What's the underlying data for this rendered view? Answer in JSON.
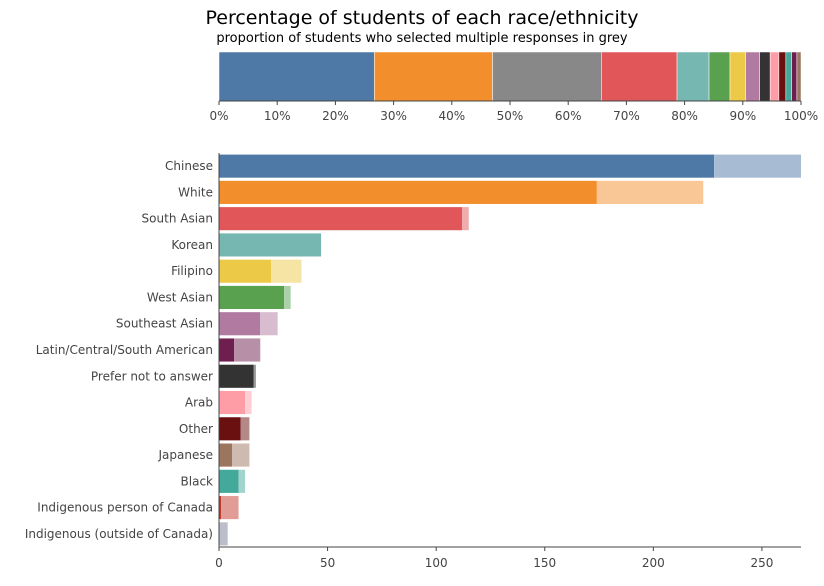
{
  "chart_data": [
    {
      "type": "bar",
      "orientation": "horizontal-stacked-100",
      "title": "Percentage of students of each race/ethnicity",
      "subtitle": "proportion of students who selected multiple responses in grey",
      "x_ticks": [
        "0%",
        "10%",
        "20%",
        "30%",
        "40%",
        "50%",
        "60%",
        "70%",
        "80%",
        "90%",
        "100%"
      ],
      "xlim": [
        0,
        100
      ],
      "segments": [
        {
          "category": "Chinese",
          "percent": 26.7,
          "color": "#4e79a7"
        },
        {
          "category": "White",
          "percent": 20.3,
          "color": "#f28e2b"
        },
        {
          "category": "Multiple responses",
          "percent": 18.7,
          "color": "#888888"
        },
        {
          "category": "South Asian",
          "percent": 13.0,
          "color": "#e15759"
        },
        {
          "category": "Korean",
          "percent": 5.5,
          "color": "#76b7b2"
        },
        {
          "category": "West Asian",
          "percent": 3.6,
          "color": "#59a14f"
        },
        {
          "category": "Filipino",
          "percent": 2.7,
          "color": "#edc948"
        },
        {
          "category": "Southeast Asian",
          "percent": 2.4,
          "color": "#b07aa1"
        },
        {
          "category": "Prefer not to answer",
          "percent": 1.8,
          "color": "#333333"
        },
        {
          "category": "Arab",
          "percent": 1.5,
          "color": "#ff9da7"
        },
        {
          "category": "Other",
          "percent": 1.2,
          "color": "#6b1010"
        },
        {
          "category": "Black",
          "percent": 1.0,
          "color": "#43a99a"
        },
        {
          "category": "Latin/Central/South American",
          "percent": 0.9,
          "color": "#6f1f4f"
        },
        {
          "category": "Japanese",
          "percent": 0.7,
          "color": "#9c755f"
        }
      ]
    },
    {
      "type": "bar",
      "orientation": "horizontal-stacked",
      "categories": [
        "Chinese",
        "White",
        "South Asian",
        "Korean",
        "Filipino",
        "West Asian",
        "Southeast Asian",
        "Latin/Central/South American",
        "Prefer not to answer",
        "Arab",
        "Other",
        "Japanese",
        "Black",
        "Indigenous person of Canada",
        "Indigenous (outside of Canada)"
      ],
      "series": [
        {
          "role": "single_response",
          "values": [
            228,
            174,
            112,
            47,
            24,
            30,
            19,
            7,
            16,
            12,
            10,
            6,
            9,
            1,
            0
          ]
        },
        {
          "role": "multiple_responses",
          "values": [
            40,
            49,
            3,
            0,
            14,
            3,
            8,
            12,
            1,
            3,
            4,
            8,
            3,
            8,
            4
          ]
        }
      ],
      "colors": [
        "#4e79a7",
        "#f28e2b",
        "#e15759",
        "#76b7b2",
        "#edc948",
        "#59a14f",
        "#b07aa1",
        "#6f1f4f",
        "#333333",
        "#ff9da7",
        "#6b1010",
        "#9c755f",
        "#43a99a",
        "#c0392b",
        "#7a7d99"
      ],
      "x_ticks": [
        0,
        50,
        100,
        150,
        200,
        250
      ],
      "xlim": [
        0,
        268
      ],
      "grid": false,
      "legend": "none"
    }
  ]
}
